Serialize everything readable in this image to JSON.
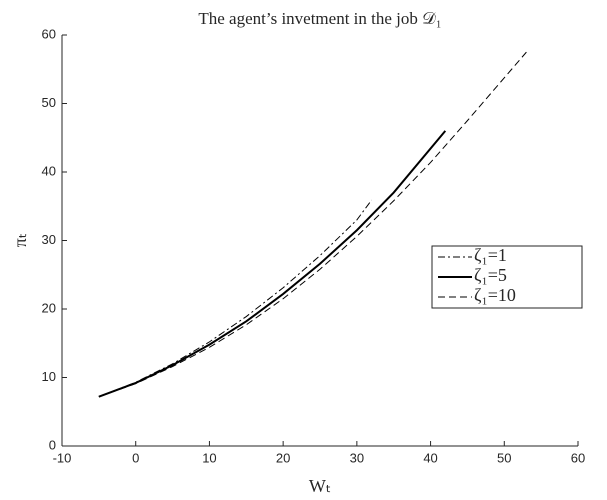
{
  "chart_data": {
    "type": "line",
    "title": "The agent’s invetment in the job 𝒟₁",
    "x_label": "Wₜ",
    "y_label": "πₜ",
    "xlim": [
      -10,
      60
    ],
    "xticks": [
      -10,
      0,
      10,
      20,
      30,
      40,
      50,
      60
    ],
    "ylim": [
      0,
      60
    ],
    "yticks": [
      0,
      10,
      20,
      30,
      40,
      50,
      60
    ],
    "grid": false,
    "legend": "right",
    "series": [
      {
        "name": "ζ₁=1",
        "color": "#000000",
        "style": "dashdot",
        "x": [
          -5,
          0,
          5,
          10,
          15,
          20,
          25,
          30,
          32
        ],
        "values": [
          7.2,
          9.3,
          12,
          15.2,
          18.9,
          23.1,
          27.8,
          33,
          35.9
        ]
      },
      {
        "name": "ζ₁=5",
        "color": "#000000",
        "style": "solid",
        "x": [
          -5,
          0,
          5,
          10,
          15,
          20,
          25,
          30,
          35,
          42
        ],
        "values": [
          7.2,
          9.2,
          11.8,
          14.8,
          18.2,
          22.2,
          26.6,
          31.5,
          37,
          46
        ]
      },
      {
        "name": "ζ₁=10",
        "color": "#000000",
        "style": "dashed",
        "x": [
          -5,
          0,
          5,
          10,
          15,
          20,
          25,
          30,
          35,
          40,
          45,
          53
        ],
        "values": [
          7.2,
          9.1,
          11.6,
          14.4,
          17.7,
          21.5,
          25.8,
          30.6,
          35.8,
          41.4,
          47.5,
          57.5
        ]
      }
    ]
  }
}
